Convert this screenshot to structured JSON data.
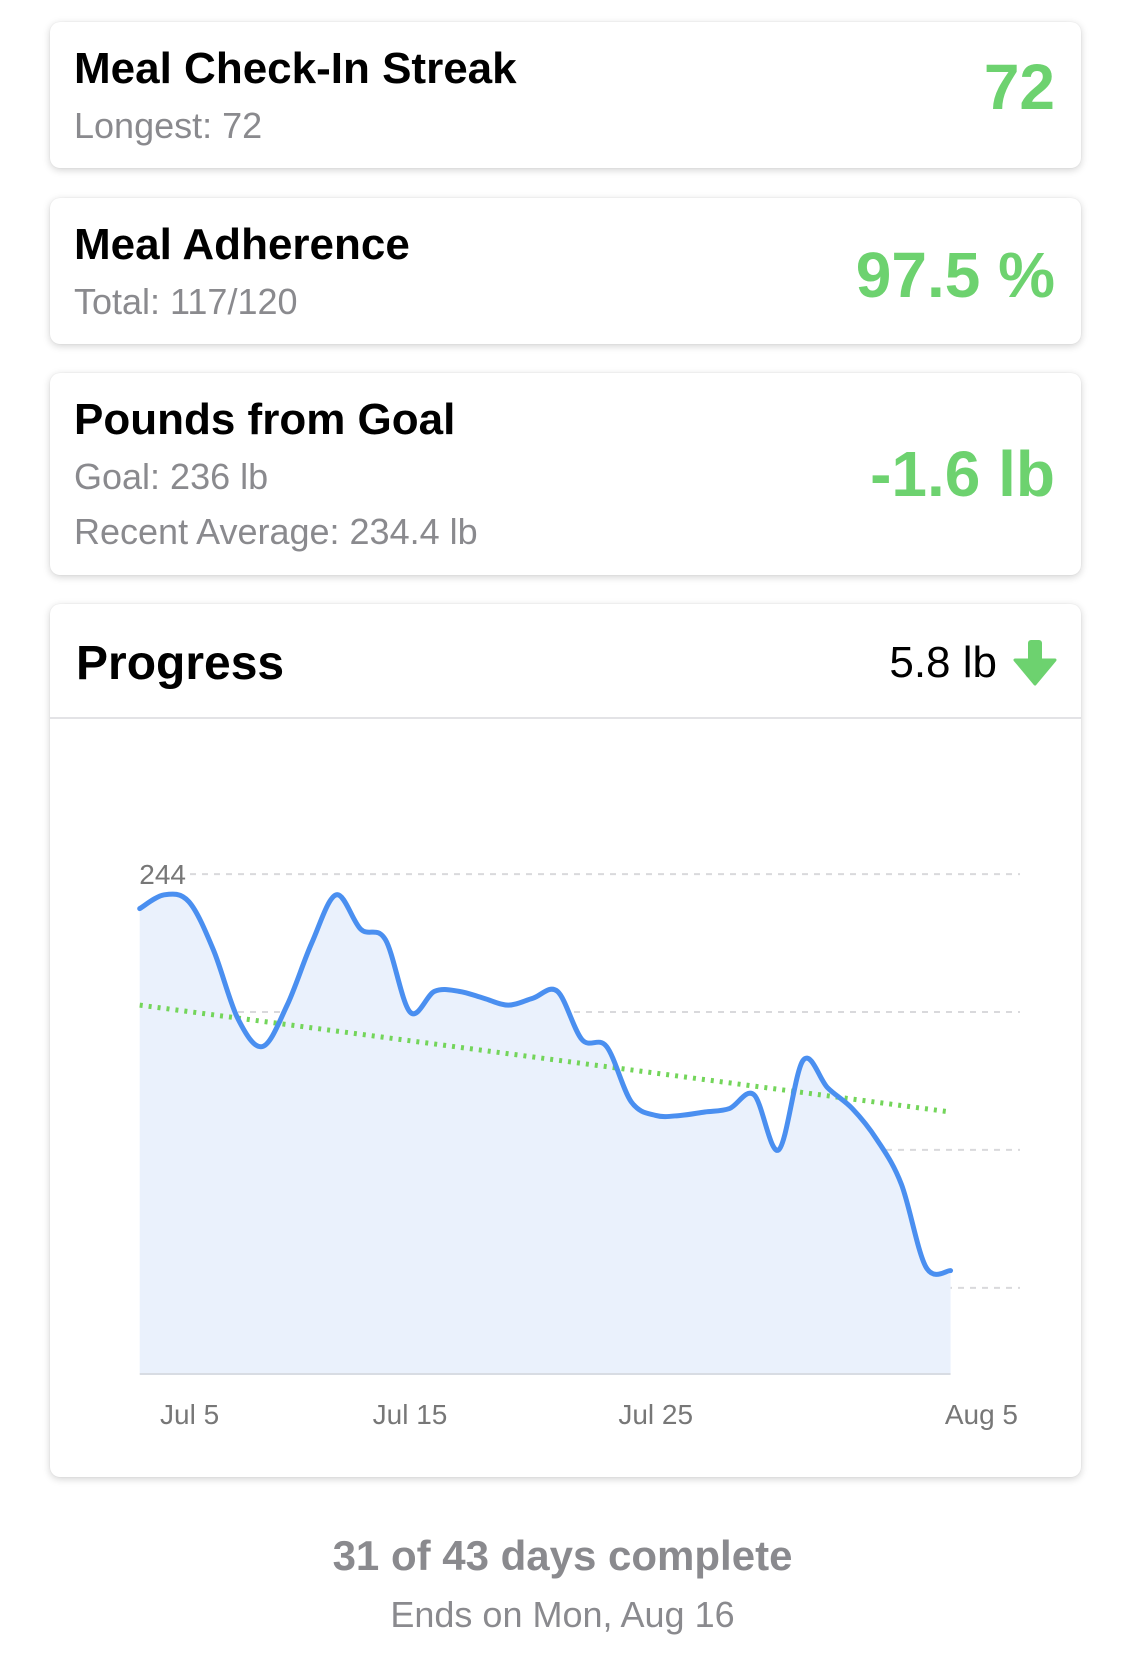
{
  "streak": {
    "title": "Meal Check-In Streak",
    "longest": "Longest: 72",
    "value": "72"
  },
  "adherence": {
    "title": "Meal Adherence",
    "total": "Total: 117/120",
    "value": "97.5 %"
  },
  "goal": {
    "title": "Pounds from Goal",
    "goal_text": "Goal: 236 lb",
    "recent_avg": "Recent Average: 234.4 lb",
    "value": "-1.6 lb"
  },
  "progress": {
    "title": "Progress",
    "change": "5.8 lb",
    "change_icon": "down-arrow-icon"
  },
  "colors": {
    "accent_green": "#6dd26f",
    "line_blue": "#4a8ff0",
    "area_fill": "#eaf1fc",
    "trend_green": "#73d55a"
  },
  "chart_data": {
    "type": "line",
    "x_ticks": [
      "Jul 5",
      "Jul 15",
      "Jul 25",
      "Aug 5"
    ],
    "x_tick_days": [
      4,
      14,
      24,
      35
    ],
    "y_ticks": [
      244,
      240,
      236,
      232
    ],
    "xlim": [
      0,
      35
    ],
    "ylim": [
      229.5,
      248.5
    ],
    "grid": "horizontal dashed",
    "series": [
      {
        "points": [
          [
            3,
            243.0
          ],
          [
            4,
            243.4
          ],
          [
            5,
            243.2
          ],
          [
            6,
            241.8
          ],
          [
            7,
            239.8
          ],
          [
            8,
            239.0
          ],
          [
            9,
            240.2
          ],
          [
            10,
            242.0
          ],
          [
            11,
            243.4
          ],
          [
            12,
            242.4
          ],
          [
            13,
            242.1
          ],
          [
            14,
            240.0
          ],
          [
            15,
            240.6
          ],
          [
            16,
            240.6
          ],
          [
            17,
            240.4
          ],
          [
            18,
            240.2
          ],
          [
            19,
            240.4
          ],
          [
            20,
            240.6
          ],
          [
            21,
            239.2
          ],
          [
            22,
            239.0
          ],
          [
            23,
            237.4
          ],
          [
            24,
            237.0
          ],
          [
            25,
            237.0
          ],
          [
            26,
            237.1
          ],
          [
            27,
            237.2
          ],
          [
            28,
            237.6
          ],
          [
            29,
            236.0
          ],
          [
            30,
            238.6
          ],
          [
            31,
            237.8
          ],
          [
            32,
            237.2
          ],
          [
            33,
            236.3
          ],
          [
            34,
            235.0
          ],
          [
            35,
            232.6
          ],
          [
            36,
            232.5
          ]
        ]
      },
      {
        "style": "dotted-trend",
        "points": [
          [
            3,
            240.2
          ],
          [
            36,
            237.1
          ]
        ]
      }
    ]
  },
  "footer": {
    "days": "31 of 43 days complete",
    "ends": "Ends on Mon, Aug 16"
  }
}
